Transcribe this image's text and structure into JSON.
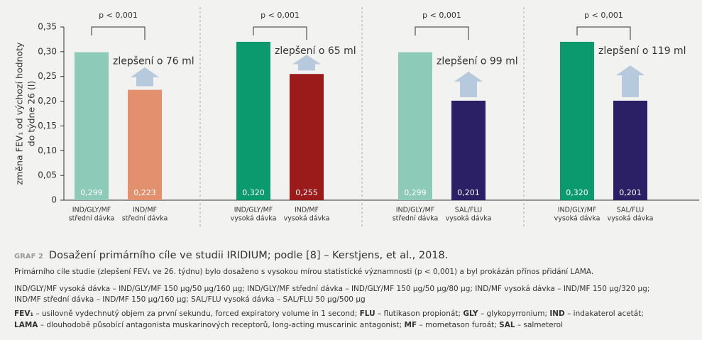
{
  "chart_data": {
    "type": "bar",
    "ylabel": [
      "změna FEV₁ od výchozí hodnoty",
      "do týdne 26 (l)"
    ],
    "categories": [
      [
        "IND/GLY/MF",
        "střední dávka"
      ],
      [
        "IND/MF",
        "střední dávka"
      ],
      [
        "IND/GLY/MF",
        "vysoká dávka"
      ],
      [
        "IND/MF",
        "vysoká dávka"
      ],
      [
        "IND/GLY/MF",
        "střední dávka"
      ],
      [
        "SAL/FLU",
        "vysoká dávka"
      ],
      [
        "IND/GLY/MF",
        "vysoká dávka"
      ],
      [
        "SAL/FLU",
        "vysoká dávka"
      ]
    ],
    "values": [
      0.299,
      0.223,
      0.32,
      0.255,
      0.299,
      0.201,
      0.32,
      0.201
    ],
    "value_labels": [
      "0,299",
      "0,223",
      "0,320",
      "0,255",
      "0,299",
      "0,201",
      "0,320",
      "0,201"
    ],
    "colors": [
      "#8ecab8",
      "#e3906f",
      "#0a9a6e",
      "#9b1a1a",
      "#8ecab8",
      "#2b2066",
      "#0a9a6e",
      "#2b2066"
    ],
    "annotations": [
      {
        "p": "p < 0,001",
        "improvement": "zlepšení o 76 ml"
      },
      {
        "p": "p < 0,001",
        "improvement": "zlepšení o 65 ml"
      },
      {
        "p": "p < 0,001",
        "improvement": "zlepšení o 99 ml"
      },
      {
        "p": "p < 0,001",
        "improvement": "zlepšení o 119 ml"
      }
    ],
    "ylim": [
      0,
      0.35
    ],
    "yticks": [
      {
        "value": 0,
        "label": "0"
      },
      {
        "value": 0.05,
        "label": "0,05"
      },
      {
        "value": 0.1,
        "label": "0,10"
      },
      {
        "value": 0.15,
        "label": "0,15"
      },
      {
        "value": 0.2,
        "label": "0,20"
      },
      {
        "value": 0.25,
        "label": "0,25"
      },
      {
        "value": 0.3,
        "label": "0,30"
      },
      {
        "value": 0.35,
        "label": "0,35"
      }
    ]
  },
  "caption": {
    "label": "GRAF 2",
    "title": "Dosažení primárního cíle ve studii IRIDIUM; podle [8] – Kerstjens, et al., 2018.",
    "lines": [
      "Primárního cíle studie (zlepšení FEV₁ ve 26. týdnu) bylo dosaženo s vysokou mírou statistické významnosti (p < 0,001) a byl prokázán přínos přidání LAMA.",
      "IND/GLY/MF vysoká dávka – IND/GLY/MF 150 μg/50 μg/160 μg;  IND/GLY/MF střední dávka – IND/GLY/MF 150 μg/50 μg/80 μg; IND/MF vysoká dávka – IND/MF 150 μg/320 μg;",
      "IND/MF střední dávka – IND/MF 150 μg/160 μg; SAL/FLU vysoká dávka – SAL/FLU 50 μg/500 μg"
    ],
    "definitions": [
      [
        {
          "term": "FEV₁",
          "def": " – usilovně vydechnutý objem za první sekundu, forced expiratory volume in 1 second; "
        },
        {
          "term": "FLU",
          "def": " – flutikason propionát; "
        },
        {
          "term": "GLY",
          "def": " – glykopyrronium; "
        },
        {
          "term": "IND",
          "def": " – indakaterol acetát;"
        }
      ],
      [
        {
          "term": "LAMA",
          "def": " – dlouhodobě působící antagonista muskarinových receptorů, long-acting muscarinic antagonist; "
        },
        {
          "term": "MF",
          "def": " – mometason furoát; "
        },
        {
          "term": "SAL",
          "def": " – salmeterol"
        }
      ]
    ]
  }
}
